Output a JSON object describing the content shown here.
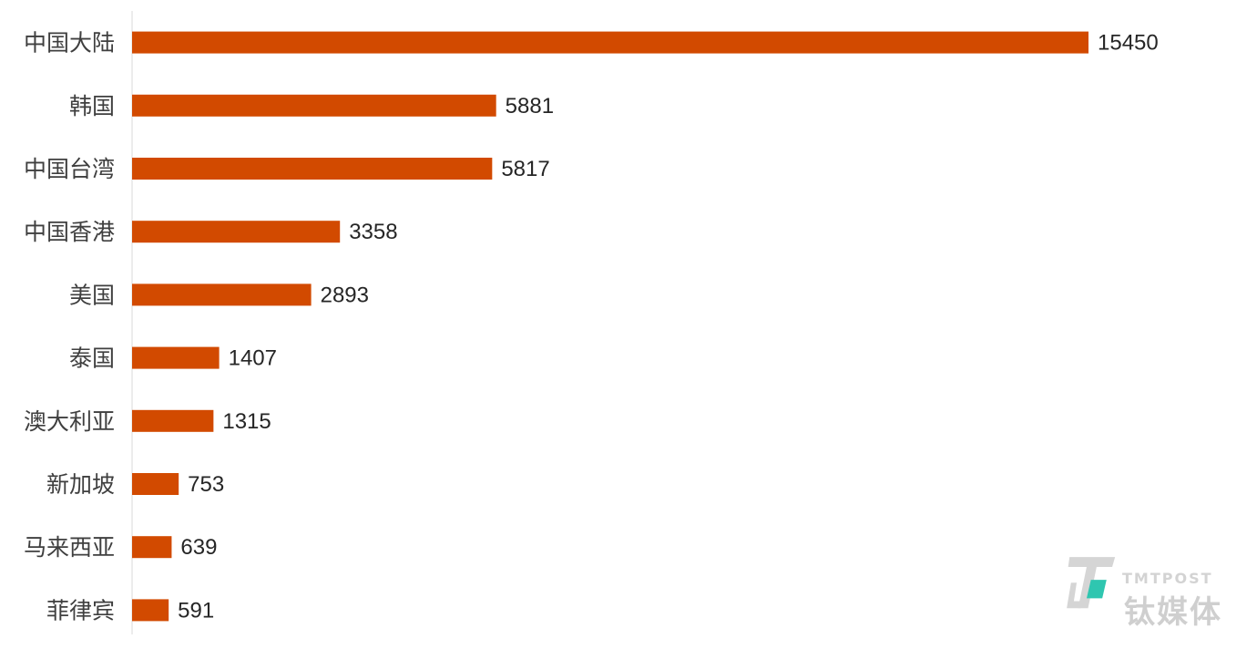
{
  "chart_data": {
    "type": "bar",
    "orientation": "horizontal",
    "categories": [
      "中国大陆",
      "韩国",
      "中国台湾",
      "中国香港",
      "美国",
      "泰国",
      "澳大利亚",
      "新加坡",
      "马来西亚",
      "菲律宾"
    ],
    "values": [
      15450,
      5881,
      5817,
      3358,
      2893,
      1407,
      1315,
      753,
      639,
      591
    ],
    "xlim": [
      0,
      15450
    ],
    "grid": false,
    "legend": "none",
    "data_labels": true
  },
  "colors": {
    "bar": "#D24A00",
    "axis": "#d9d9d9"
  },
  "watermark": {
    "brand": "TMTPOST",
    "name": "钛媒体",
    "icon": "tmtpost-logo-icon"
  }
}
